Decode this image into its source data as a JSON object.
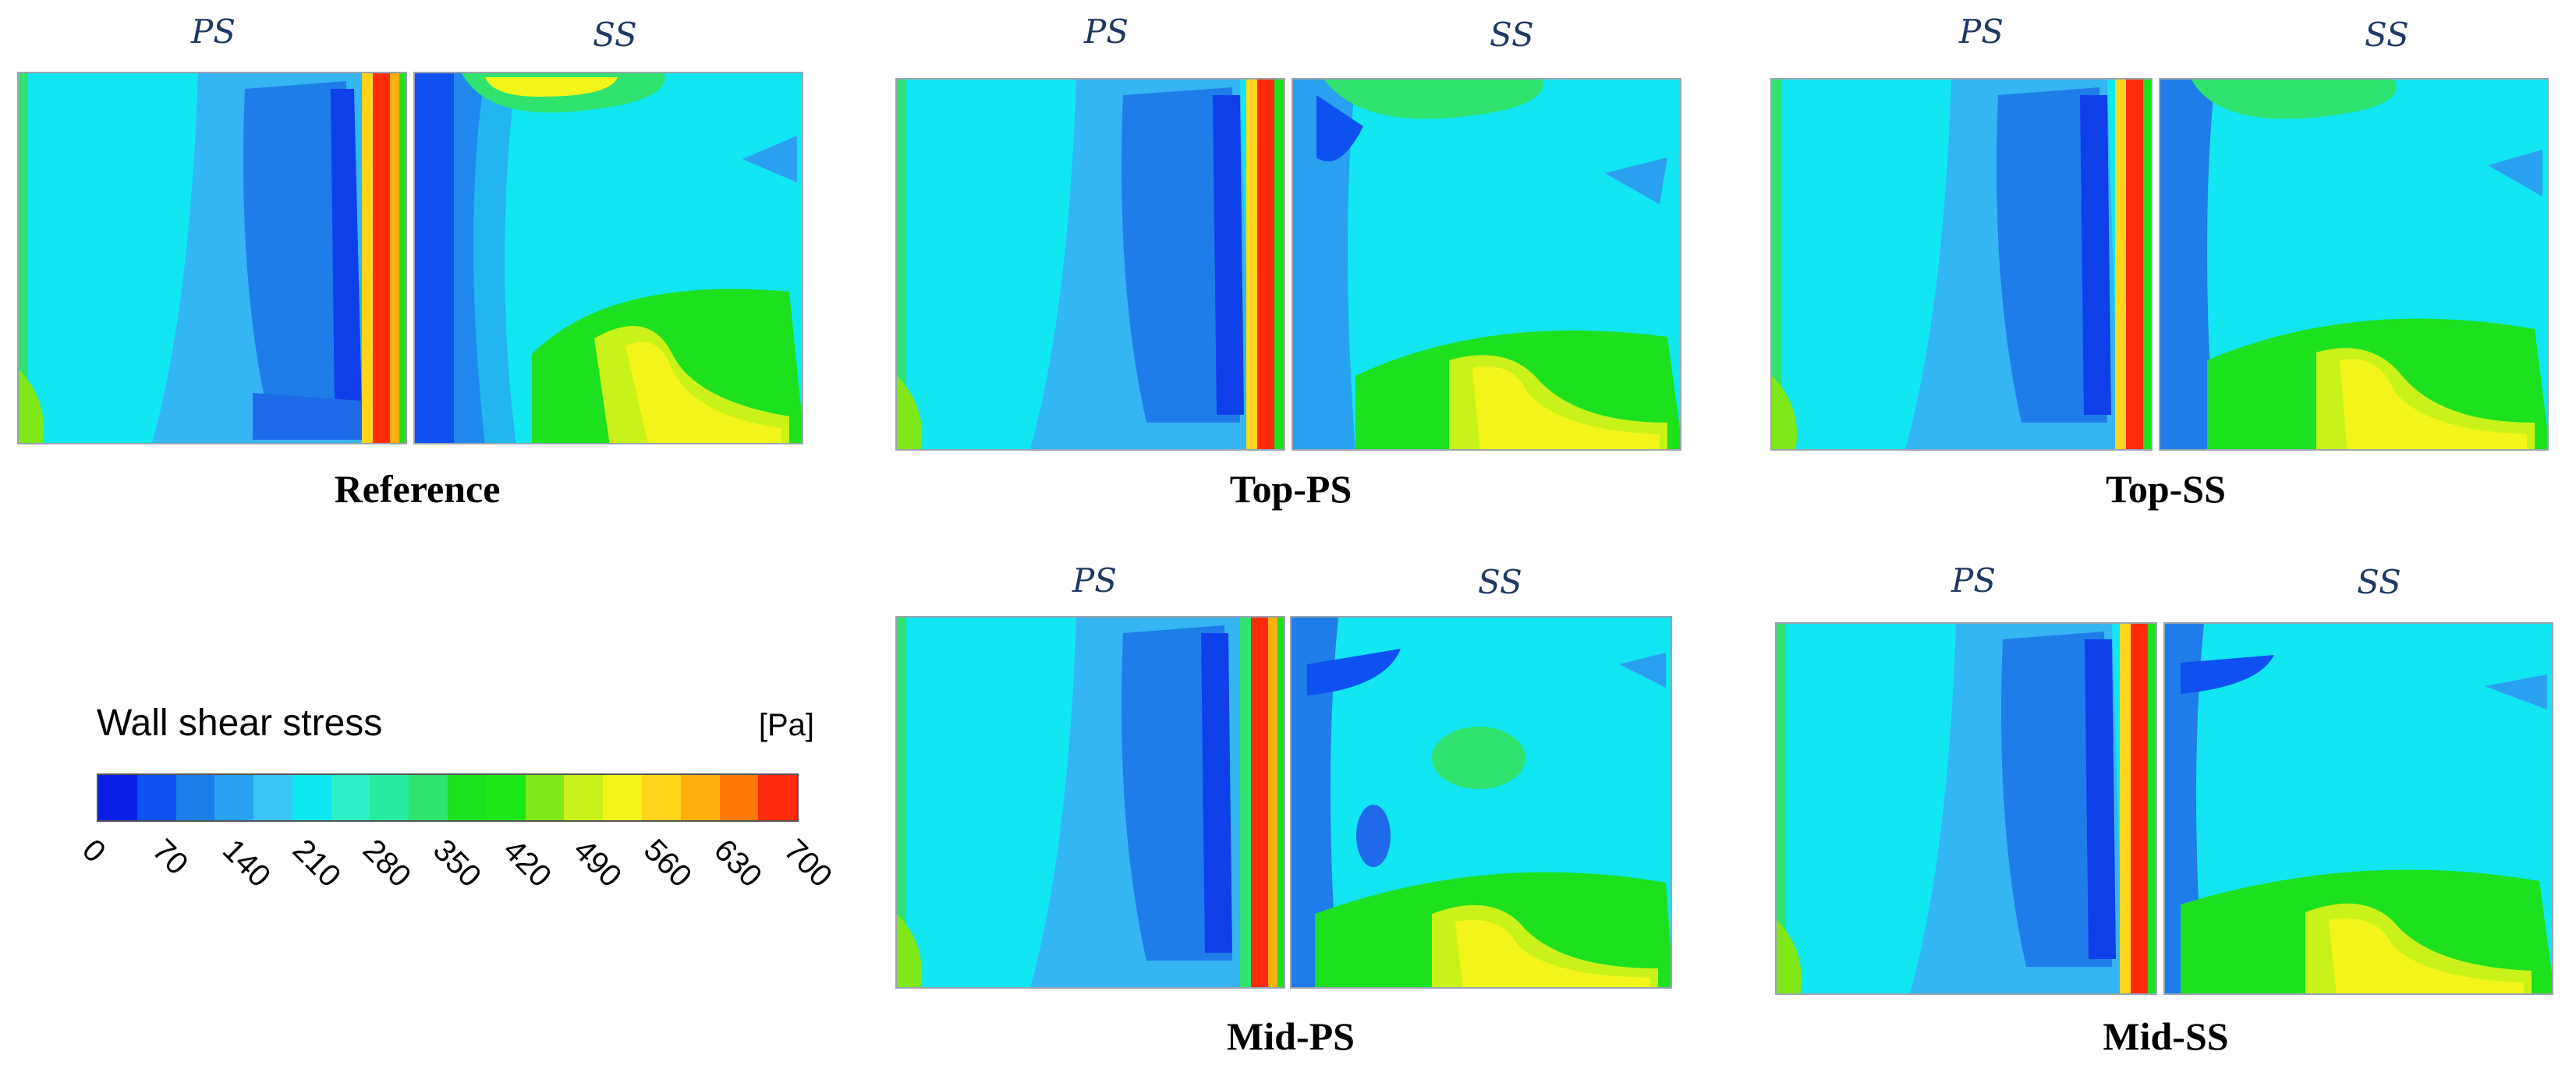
{
  "side_labels": {
    "ps": "PS",
    "ss": "SS"
  },
  "panels": [
    {
      "id": "reference",
      "title": "Reference"
    },
    {
      "id": "top-ps",
      "title": "Top-PS"
    },
    {
      "id": "top-ss",
      "title": "Top-SS"
    },
    {
      "id": "mid-ps",
      "title": "Mid-PS"
    },
    {
      "id": "mid-ss",
      "title": "Mid-SS"
    }
  ],
  "legend": {
    "title": "Wall shear stress",
    "unit": "[Pa]",
    "ticks": [
      "0",
      "70",
      "140",
      "210",
      "280",
      "350",
      "420",
      "490",
      "560",
      "630",
      "700"
    ],
    "range": [
      0,
      700
    ],
    "colors": [
      "#0a1ee6",
      "#0f50f0",
      "#1b7de8",
      "#2aa0f0",
      "#39c6f5",
      "#0ee8ef",
      "#2cf0c8",
      "#27eca0",
      "#2fe36e",
      "#1de01e",
      "#1ee81a",
      "#7ee818",
      "#c9f21a",
      "#f3f51a",
      "#ffd41a",
      "#ffb00f",
      "#ff7a0a",
      "#ff2a0a"
    ]
  }
}
